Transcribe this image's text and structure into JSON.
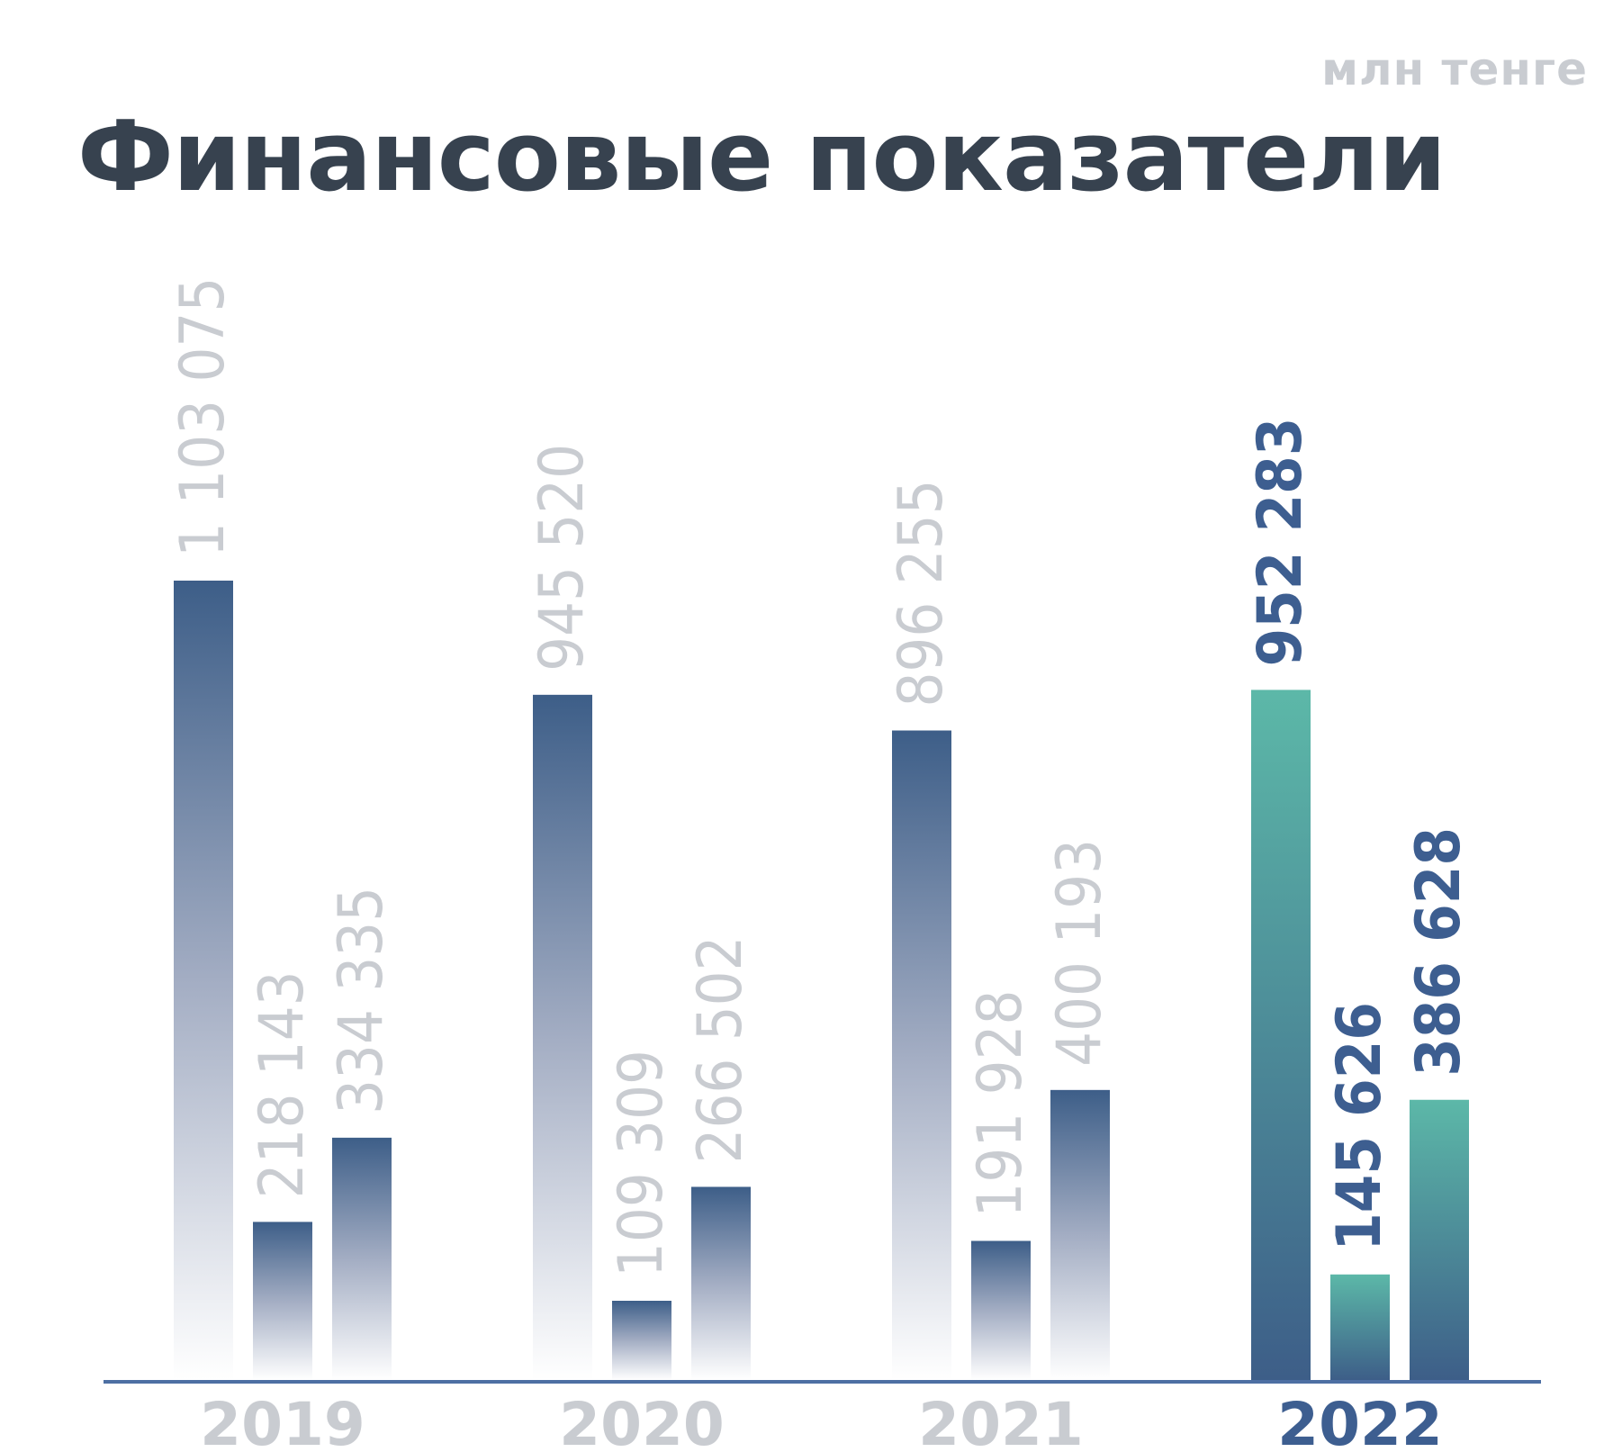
{
  "unit_label": "млн тенге",
  "colors": {
    "title": "#37424f",
    "muted": "#c9ccd1",
    "highlight": "#3d5e90",
    "bar_dark": "#3d5e88",
    "bar_teal": "#5cb8a8",
    "axis": "#4d6fa3"
  },
  "chart_data": {
    "type": "bar",
    "title": "Финансовые показатели",
    "categories": [
      "2019",
      "2020",
      "2021",
      "2022"
    ],
    "highlight_category": "2022",
    "series": [
      {
        "values": [
          1103075,
          945520,
          896255,
          952283
        ]
      },
      {
        "values": [
          218143,
          109309,
          191928,
          145626
        ]
      },
      {
        "values": [
          334335,
          266502,
          400193,
          386628
        ]
      }
    ],
    "value_labels": [
      [
        "1 103 075",
        "218 143",
        "334 335"
      ],
      [
        "945 520",
        "109 309",
        "266 502"
      ],
      [
        "896 255",
        "191 928",
        "400 193"
      ],
      [
        "952 283",
        "145 626",
        "386 628"
      ]
    ],
    "ylim": [
      0,
      1103075
    ],
    "grid": false,
    "legend": "none"
  }
}
